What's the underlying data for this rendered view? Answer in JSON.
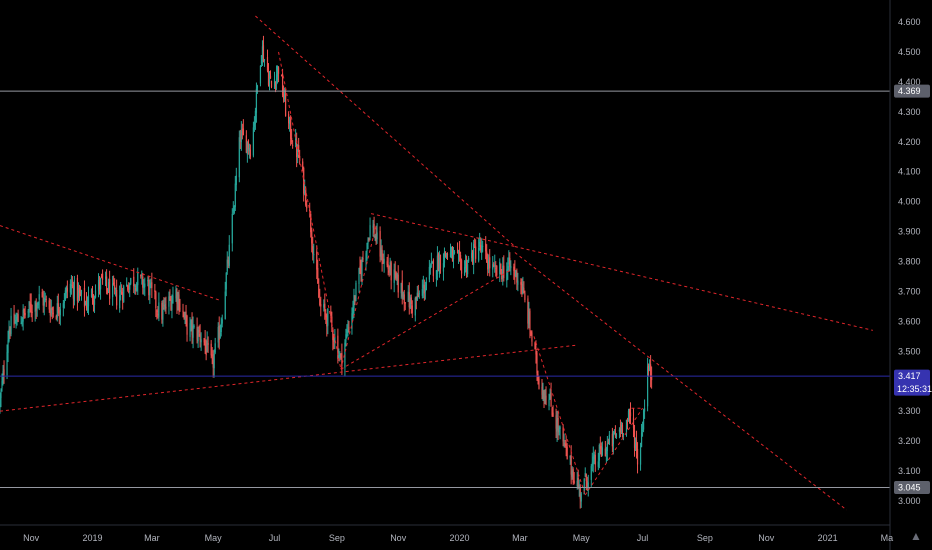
{
  "chart_data": {
    "type": "candlestick",
    "ylim": [
      2.97,
      4.64
    ],
    "y_ticks": [
      3.0,
      3.1,
      3.2,
      3.3,
      3.4,
      3.5,
      3.6,
      3.7,
      3.8,
      3.9,
      4.0,
      4.1,
      4.2,
      4.3,
      4.4,
      4.5,
      4.6
    ],
    "y_tick_labels": [
      "3.000",
      "3.100",
      "3.200",
      "3.300",
      "3.400",
      "3.500",
      "3.600",
      "3.700",
      "3.800",
      "3.900",
      "4.000",
      "4.100",
      "4.200",
      "4.300",
      "4.400",
      "4.500",
      "4.600"
    ],
    "x_range": [
      "2018-10-01",
      "2021-03-15"
    ],
    "x_ticks": [
      {
        "date": "2018-11-01",
        "label": "Nov"
      },
      {
        "date": "2019-01-01",
        "label": "2019"
      },
      {
        "date": "2019-03-01",
        "label": "Mar"
      },
      {
        "date": "2019-05-01",
        "label": "May"
      },
      {
        "date": "2019-07-01",
        "label": "Jul"
      },
      {
        "date": "2019-09-01",
        "label": "Sep"
      },
      {
        "date": "2019-11-01",
        "label": "Nov"
      },
      {
        "date": "2020-01-01",
        "label": "2020"
      },
      {
        "date": "2020-03-01",
        "label": "Mar"
      },
      {
        "date": "2020-05-01",
        "label": "May"
      },
      {
        "date": "2020-07-01",
        "label": "Jul"
      },
      {
        "date": "2020-09-01",
        "label": "Sep"
      },
      {
        "date": "2020-11-01",
        "label": "Nov"
      },
      {
        "date": "2021-01-01",
        "label": "2021"
      },
      {
        "date": "2021-03-01",
        "label": "Ma"
      }
    ],
    "close_path": [
      [
        "2018-10-01",
        3.33
      ],
      [
        "2018-10-10",
        3.58
      ],
      [
        "2018-10-25",
        3.62
      ],
      [
        "2018-11-10",
        3.68
      ],
      [
        "2018-11-25",
        3.63
      ],
      [
        "2018-12-10",
        3.72
      ],
      [
        "2018-12-25",
        3.66
      ],
      [
        "2019-01-10",
        3.73
      ],
      [
        "2019-01-25",
        3.68
      ],
      [
        "2019-02-10",
        3.74
      ],
      [
        "2019-02-25",
        3.72
      ],
      [
        "2019-03-10",
        3.62
      ],
      [
        "2019-03-25",
        3.7
      ],
      [
        "2019-04-05",
        3.58
      ],
      [
        "2019-04-20",
        3.55
      ],
      [
        "2019-04-30",
        3.45
      ],
      [
        "2019-05-08",
        3.58
      ],
      [
        "2019-05-18",
        3.86
      ],
      [
        "2019-05-28",
        4.22
      ],
      [
        "2019-06-08",
        4.18
      ],
      [
        "2019-06-18",
        4.52
      ],
      [
        "2019-06-28",
        4.38
      ],
      [
        "2019-07-05",
        4.45
      ],
      [
        "2019-07-15",
        4.25
      ],
      [
        "2019-07-25",
        4.15
      ],
      [
        "2019-08-05",
        3.95
      ],
      [
        "2019-08-15",
        3.65
      ],
      [
        "2019-08-25",
        3.6
      ],
      [
        "2019-09-05",
        3.47
      ],
      [
        "2019-09-15",
        3.62
      ],
      [
        "2019-09-25",
        3.78
      ],
      [
        "2019-10-05",
        3.93
      ],
      [
        "2019-10-15",
        3.82
      ],
      [
        "2019-10-25",
        3.76
      ],
      [
        "2019-11-05",
        3.7
      ],
      [
        "2019-11-15",
        3.65
      ],
      [
        "2019-11-25",
        3.7
      ],
      [
        "2019-12-05",
        3.78
      ],
      [
        "2019-12-20",
        3.83
      ],
      [
        "2020-01-05",
        3.78
      ],
      [
        "2020-01-20",
        3.85
      ],
      [
        "2020-02-05",
        3.76
      ],
      [
        "2020-02-20",
        3.78
      ],
      [
        "2020-03-01",
        3.74
      ],
      [
        "2020-03-10",
        3.6
      ],
      [
        "2020-03-20",
        3.4
      ],
      [
        "2020-04-01",
        3.32
      ],
      [
        "2020-04-10",
        3.22
      ],
      [
        "2020-04-20",
        3.12
      ],
      [
        "2020-04-30",
        3.03
      ],
      [
        "2020-05-10",
        3.1
      ],
      [
        "2020-05-20",
        3.16
      ],
      [
        "2020-06-01",
        3.2
      ],
      [
        "2020-06-10",
        3.25
      ],
      [
        "2020-06-20",
        3.28
      ],
      [
        "2020-06-27",
        3.12
      ],
      [
        "2020-07-02",
        3.3
      ],
      [
        "2020-07-06",
        3.44
      ],
      [
        "2020-07-10",
        3.42
      ]
    ],
    "trend_lines": [
      {
        "from": [
          "2018-10-01",
          3.92
        ],
        "to": [
          "2019-05-08",
          3.67
        ]
      },
      {
        "from": [
          "2018-10-01",
          3.3
        ],
        "to": [
          "2020-04-25",
          3.52
        ]
      },
      {
        "from": [
          "2019-06-12",
          4.62
        ],
        "to": [
          "2020-02-25",
          3.85
        ]
      },
      {
        "from": [
          "2020-02-25",
          3.85
        ],
        "to": [
          "2021-02-15",
          3.57
        ]
      },
      {
        "from": [
          "2019-10-05",
          3.96
        ],
        "to": [
          "2020-02-25",
          3.85
        ]
      },
      {
        "from": [
          "2019-07-05",
          4.5
        ],
        "to": [
          "2019-09-05",
          3.44
        ]
      },
      {
        "from": [
          "2019-09-05",
          3.44
        ],
        "to": [
          "2019-10-10",
          3.92
        ]
      },
      {
        "from": [
          "2019-09-05",
          3.44
        ],
        "to": [
          "2020-02-20",
          3.77
        ]
      },
      {
        "from": [
          "2020-02-25",
          3.83
        ],
        "to": [
          "2020-07-15",
          3.46
        ]
      },
      {
        "from": [
          "2020-07-15",
          3.46
        ],
        "to": [
          "2021-01-20",
          2.97
        ]
      },
      {
        "from": [
          "2020-03-15",
          3.55
        ],
        "to": [
          "2020-05-05",
          3.02
        ]
      },
      {
        "from": [
          "2020-05-05",
          3.02
        ],
        "to": [
          "2020-07-01",
          3.31
        ]
      },
      {
        "from": [
          "2020-06-20",
          3.31
        ],
        "to": [
          "2020-07-01",
          3.31
        ]
      }
    ],
    "horizontal_lines": [
      {
        "value": 4.369,
        "label": "4.369"
      },
      {
        "value": 3.417,
        "label": "3.417",
        "countdown": "12:35:31"
      },
      {
        "value": 3.045,
        "label": "3.045"
      }
    ],
    "colors": {
      "background": "#000000",
      "candle_up": "#26a69a",
      "candle_down": "#ef5350",
      "trend_line": "#e0262b",
      "hline_gray": "#9598a1",
      "hline_current": "#2b2aa8",
      "badge_gray": "#5d606b",
      "badge_current": "#3633b0",
      "axis_text": "#b2b5be"
    },
    "logo_icon": "tradingview-logo-icon"
  }
}
